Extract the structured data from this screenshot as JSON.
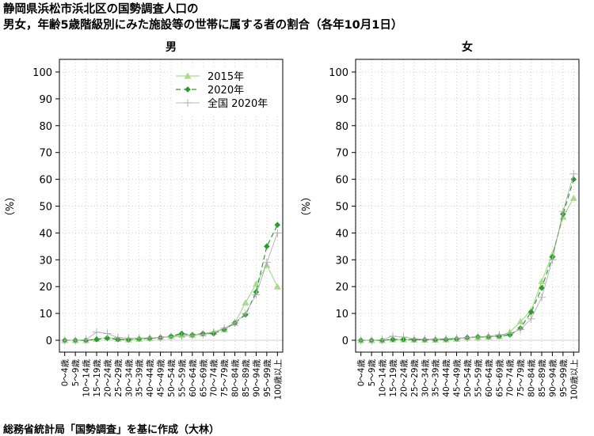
{
  "title_line1": "静岡県浜松市浜北区の国勢調査人口の",
  "title_line2": "男女，年齢5歳階級別にみた施設等の世帯に属する者の割合（各年10月1日）",
  "source": "総務省統計局「国勢調査」を基に作成（大林）",
  "colors": {
    "s2015": "#a6dc8c",
    "s2020": "#2e9a2e",
    "national": "#a8a8a8",
    "grid": "#d0d0d0",
    "zero_line": "#d0d0d0"
  },
  "chart_data": [
    {
      "type": "line",
      "title": "男",
      "ylabel": "（%）",
      "ylim": [
        0,
        100
      ],
      "yticks": [
        0,
        10,
        20,
        30,
        40,
        50,
        60,
        70,
        80,
        90,
        100
      ],
      "grid": true,
      "legend_position": "top-right",
      "categories": [
        "0～4歳",
        "5～9歳",
        "10～14歳",
        "15～19歳",
        "20～24歳",
        "25～29歳",
        "30～34歳",
        "35～39歳",
        "40～44歳",
        "45～49歳",
        "50～54歳",
        "55～59歳",
        "60～64歳",
        "65～69歳",
        "70～74歳",
        "75～79歳",
        "80～84歳",
        "85～89歳",
        "90～94歳",
        "95～99歳",
        "100歳以上"
      ],
      "series": [
        {
          "name": "2015年",
          "marker": "triangle",
          "values": [
            0,
            0,
            0,
            0.5,
            1,
            0.5,
            0.3,
            0.5,
            0.8,
            1,
            1.5,
            2,
            2,
            2.5,
            3,
            4,
            6.5,
            14,
            21,
            28,
            20
          ]
        },
        {
          "name": "2020年",
          "marker": "diamond",
          "values": [
            0,
            0,
            0,
            0.3,
            0.8,
            0.3,
            0.2,
            0.5,
            0.7,
            1,
            1.5,
            2.5,
            2,
            2.5,
            2.5,
            4,
            6.5,
            9.5,
            18,
            35,
            43
          ]
        },
        {
          "name": "全国 2020年",
          "marker": "plus",
          "values": [
            0,
            0,
            0.2,
            3,
            2.5,
            1,
            0.8,
            0.8,
            0.9,
            1,
            1.3,
            1.5,
            1.8,
            2.2,
            3,
            4.5,
            6.5,
            10,
            17,
            29,
            40
          ]
        }
      ]
    },
    {
      "type": "line",
      "title": "女",
      "ylabel": "（%）",
      "ylim": [
        0,
        100
      ],
      "yticks": [
        0,
        10,
        20,
        30,
        40,
        50,
        60,
        70,
        80,
        90,
        100
      ],
      "grid": true,
      "categories": [
        "0～4歳",
        "5～9歳",
        "10～14歳",
        "15～19歳",
        "20～24歳",
        "25～29歳",
        "30～34歳",
        "35～39歳",
        "40～44歳",
        "45～49歳",
        "50～54歳",
        "55～59歳",
        "60～64歳",
        "65～69歳",
        "70～74歳",
        "75～79歳",
        "80～84歳",
        "85～89歳",
        "90～94歳",
        "95～99歳",
        "100歳以上"
      ],
      "series": [
        {
          "name": "2015年",
          "marker": "triangle",
          "values": [
            0,
            0,
            0,
            0.3,
            0.3,
            0.2,
            0.2,
            0.2,
            0.3,
            0.5,
            1,
            1,
            1.3,
            1.5,
            3,
            7,
            11,
            22,
            32,
            46,
            53
          ]
        },
        {
          "name": "2020年",
          "marker": "diamond",
          "values": [
            0,
            0,
            0,
            0.3,
            0.3,
            0.2,
            0.2,
            0.2,
            0.3,
            0.5,
            1,
            1.3,
            1.3,
            1.5,
            2,
            4.5,
            10.5,
            19.5,
            31,
            47,
            60
          ]
        },
        {
          "name": "全国 2020年",
          "marker": "plus",
          "values": [
            0,
            0,
            0.2,
            1.5,
            1.2,
            0.6,
            0.4,
            0.5,
            0.6,
            0.8,
            1,
            1.2,
            1.5,
            2,
            2.5,
            4,
            8,
            16,
            30,
            48,
            62
          ]
        }
      ]
    }
  ]
}
